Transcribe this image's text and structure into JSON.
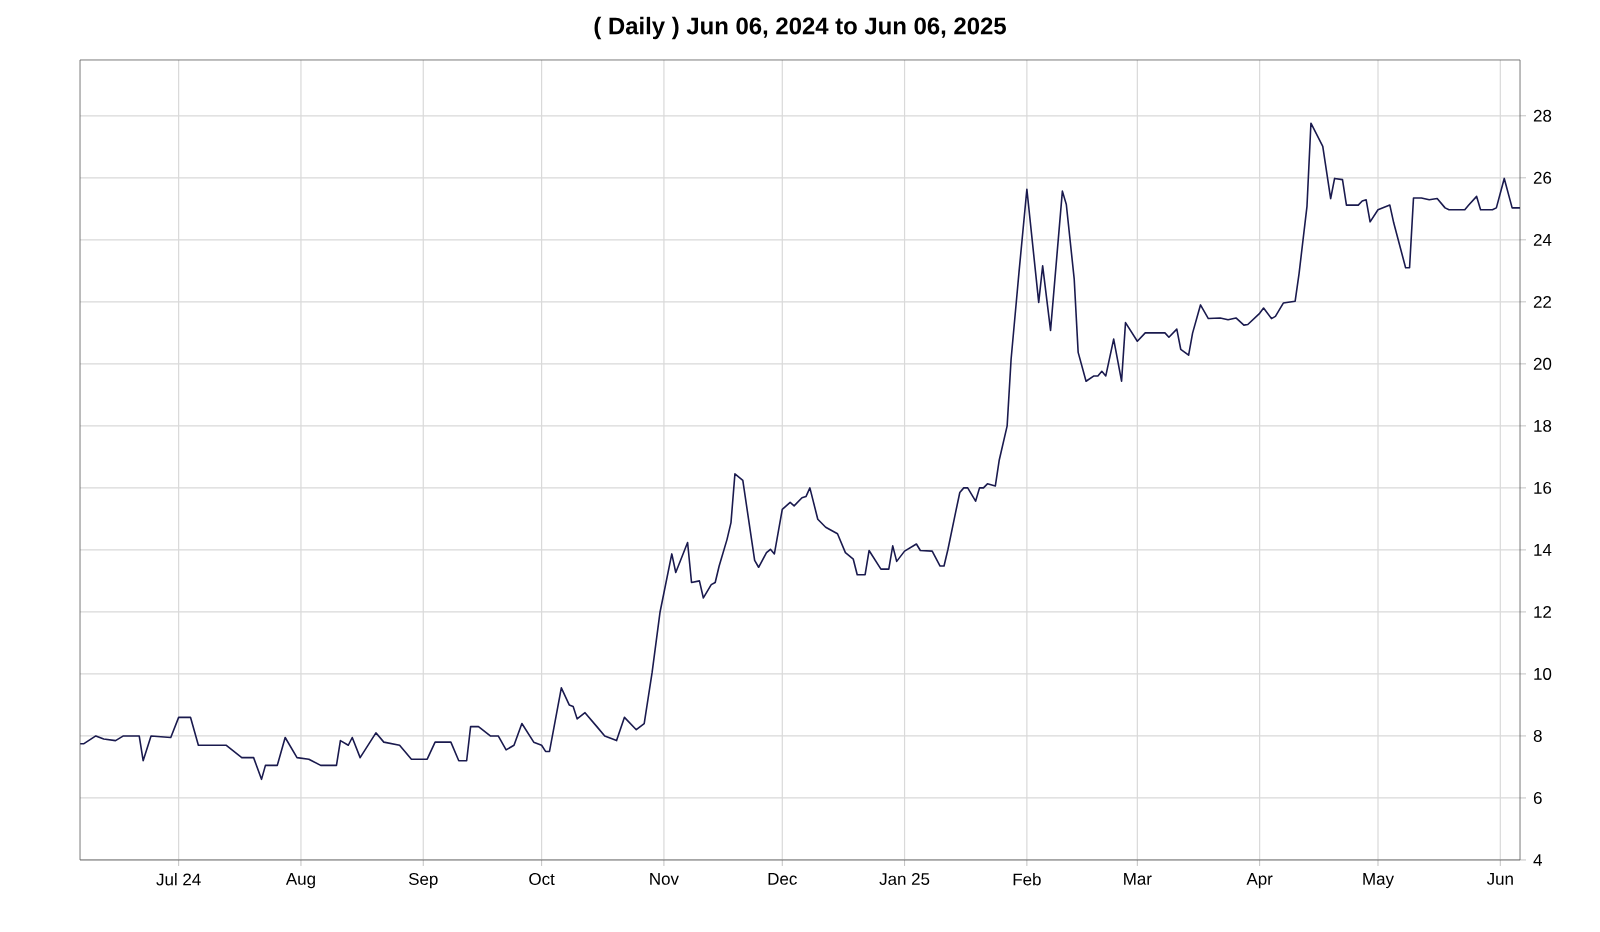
{
  "chart_data": {
    "type": "line",
    "title": "( Daily ) Jun 06, 2024 to Jun 06, 2025",
    "xlim": [
      "2024-06-06",
      "2025-06-06"
    ],
    "xticks": [
      {
        "value": "2024-07-01",
        "label": "Jul 24"
      },
      {
        "value": "2024-08-01",
        "label": "Aug"
      },
      {
        "value": "2024-09-01",
        "label": "Sep"
      },
      {
        "value": "2024-10-01",
        "label": "Oct"
      },
      {
        "value": "2024-11-01",
        "label": "Nov"
      },
      {
        "value": "2024-12-01",
        "label": "Dec"
      },
      {
        "value": "2025-01-01",
        "label": "Jan 25"
      },
      {
        "value": "2025-02-01",
        "label": "Feb"
      },
      {
        "value": "2025-03-01",
        "label": "Mar"
      },
      {
        "value": "2025-04-01",
        "label": "Apr"
      },
      {
        "value": "2025-05-01",
        "label": "May"
      },
      {
        "value": "2025-06-01",
        "label": "Jun"
      }
    ],
    "ylim": [
      4,
      29.8
    ],
    "yticks": [
      4,
      6,
      8,
      10,
      12,
      14,
      16,
      18,
      20,
      22,
      24,
      26,
      28
    ],
    "grid": true,
    "series": [
      {
        "color": "#1a1a4e",
        "x": [
          "2024-06-06",
          "2024-06-07",
          "2024-06-10",
          "2024-06-12",
          "2024-06-15",
          "2024-06-17",
          "2024-06-21",
          "2024-06-22",
          "2024-06-24",
          "2024-06-29",
          "2024-07-01",
          "2024-07-04",
          "2024-07-06",
          "2024-07-13",
          "2024-07-15",
          "2024-07-17",
          "2024-07-20",
          "2024-07-22",
          "2024-07-23",
          "2024-07-26",
          "2024-07-28",
          "2024-07-31",
          "2024-08-03",
          "2024-08-06",
          "2024-08-10",
          "2024-08-11",
          "2024-08-13",
          "2024-08-14",
          "2024-08-16",
          "2024-08-20",
          "2024-08-22",
          "2024-08-26",
          "2024-08-29",
          "2024-09-02",
          "2024-09-04",
          "2024-09-08",
          "2024-09-10",
          "2024-09-12",
          "2024-09-13",
          "2024-09-15",
          "2024-09-18",
          "2024-09-20",
          "2024-09-22",
          "2024-09-24",
          "2024-09-26",
          "2024-09-29",
          "2024-10-01",
          "2024-10-02",
          "2024-10-03",
          "2024-10-06",
          "2024-10-08",
          "2024-10-09",
          "2024-10-10",
          "2024-10-12",
          "2024-10-15",
          "2024-10-17",
          "2024-10-20",
          "2024-10-22",
          "2024-10-25",
          "2024-10-27",
          "2024-10-29",
          "2024-10-31",
          "2024-11-03",
          "2024-11-04",
          "2024-11-07",
          "2024-11-08",
          "2024-11-10",
          "2024-11-11",
          "2024-11-13",
          "2024-11-14",
          "2024-11-15",
          "2024-11-17",
          "2024-11-18",
          "2024-11-19",
          "2024-11-21",
          "2024-11-24",
          "2024-11-25",
          "2024-11-27",
          "2024-11-28",
          "2024-11-29",
          "2024-12-01",
          "2024-12-03",
          "2024-12-04",
          "2024-12-06",
          "2024-12-07",
          "2024-12-08",
          "2024-12-10",
          "2024-12-12",
          "2024-12-15",
          "2024-12-17",
          "2024-12-19",
          "2024-12-20",
          "2024-12-22",
          "2024-12-23",
          "2024-12-26",
          "2024-12-28",
          "2024-12-29",
          "2024-12-30",
          "2025-01-01",
          "2025-01-04",
          "2025-01-05",
          "2025-01-08",
          "2025-01-10",
          "2025-01-11",
          "2025-01-12",
          "2025-01-14",
          "2025-01-15",
          "2025-01-16",
          "2025-01-17",
          "2025-01-19",
          "2025-01-20",
          "2025-01-21",
          "2025-01-22",
          "2025-01-24",
          "2025-01-25",
          "2025-01-27",
          "2025-01-28",
          "2025-01-30",
          "2025-02-01",
          "2025-02-04",
          "2025-02-05",
          "2025-02-07",
          "2025-02-10",
          "2025-02-11",
          "2025-02-13",
          "2025-02-14",
          "2025-02-16",
          "2025-02-18",
          "2025-02-19",
          "2025-02-20",
          "2025-02-21",
          "2025-02-23",
          "2025-02-25",
          "2025-02-26",
          "2025-03-01",
          "2025-03-03",
          "2025-03-08",
          "2025-03-09",
          "2025-03-11",
          "2025-03-12",
          "2025-03-14",
          "2025-03-15",
          "2025-03-17",
          "2025-03-19",
          "2025-03-22",
          "2025-03-24",
          "2025-03-26",
          "2025-03-28",
          "2025-03-29",
          "2025-04-01",
          "2025-04-02",
          "2025-04-04",
          "2025-04-05",
          "2025-04-07",
          "2025-04-10",
          "2025-04-11",
          "2025-04-13",
          "2025-04-14",
          "2025-04-17",
          "2025-04-19",
          "2025-04-20",
          "2025-04-22",
          "2025-04-23",
          "2025-04-26",
          "2025-04-27",
          "2025-04-28",
          "2025-04-29",
          "2025-05-01",
          "2025-05-04",
          "2025-05-05",
          "2025-05-08",
          "2025-05-09",
          "2025-05-10",
          "2025-05-12",
          "2025-05-14",
          "2025-05-16",
          "2025-05-18",
          "2025-05-19",
          "2025-05-23",
          "2025-05-24",
          "2025-05-26",
          "2025-05-27",
          "2025-05-30",
          "2025-05-31",
          "2025-06-02",
          "2025-06-04",
          "2025-06-06"
        ],
        "values": [
          7.75,
          7.75,
          8.0,
          7.9,
          7.85,
          8.0,
          8.0,
          7.2,
          8.0,
          7.95,
          8.6,
          8.6,
          7.7,
          7.7,
          7.5,
          7.3,
          7.3,
          6.6,
          7.05,
          7.05,
          7.95,
          7.3,
          7.25,
          7.05,
          7.05,
          7.85,
          7.7,
          7.95,
          7.3,
          8.1,
          7.8,
          7.7,
          7.25,
          7.25,
          7.8,
          7.8,
          7.2,
          7.2,
          8.3,
          8.3,
          8.0,
          8.0,
          7.55,
          7.7,
          8.4,
          7.8,
          7.7,
          7.5,
          7.5,
          9.55,
          9.0,
          8.95,
          8.55,
          8.75,
          8.3,
          8.0,
          7.85,
          8.6,
          8.2,
          8.4,
          10.04,
          11.98,
          13.87,
          13.27,
          14.24,
          12.95,
          13.0,
          12.45,
          12.88,
          12.95,
          13.48,
          14.34,
          14.88,
          16.45,
          16.24,
          13.66,
          13.44,
          13.91,
          14.02,
          13.87,
          15.31,
          15.53,
          15.42,
          15.68,
          15.72,
          16.0,
          14.99,
          14.73,
          14.52,
          13.91,
          13.7,
          13.2,
          13.2,
          13.98,
          13.38,
          13.38,
          14.13,
          13.63,
          13.96,
          14.19,
          13.98,
          13.96,
          13.48,
          13.48,
          14.02,
          15.25,
          15.85,
          16.0,
          16.0,
          15.57,
          16.0,
          16.0,
          16.13,
          16.06,
          16.9,
          18.0,
          20.15,
          22.95,
          25.63,
          21.98,
          23.16,
          21.08,
          25.57,
          25.14,
          22.73,
          20.37,
          19.44,
          19.61,
          19.61,
          19.76,
          19.61,
          20.8,
          19.44,
          21.33,
          20.73,
          21.0,
          21.0,
          20.86,
          21.12,
          20.47,
          20.28,
          20.99,
          21.9,
          21.46,
          21.48,
          21.42,
          21.48,
          21.25,
          21.27,
          21.63,
          21.8,
          21.46,
          21.53,
          21.96,
          22.02,
          22.92,
          25.08,
          27.76,
          27.01,
          25.33,
          25.98,
          25.94,
          25.12,
          25.12,
          25.25,
          25.29,
          24.58,
          24.97,
          25.12,
          24.54,
          23.1,
          23.1,
          25.35,
          25.35,
          25.29,
          25.33,
          25.03,
          24.97,
          24.97,
          25.12,
          25.4,
          24.97,
          24.97,
          25.03,
          25.98,
          25.03,
          25.03
        ]
      }
    ]
  }
}
